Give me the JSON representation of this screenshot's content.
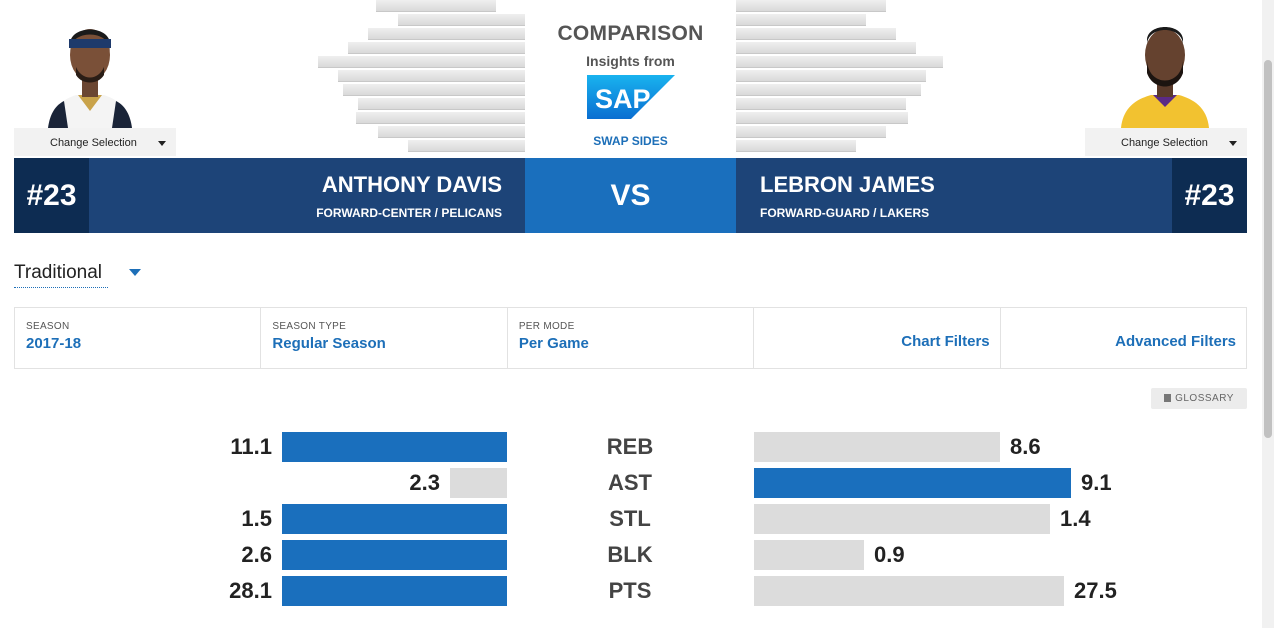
{
  "header": {
    "title": "COMPARISON",
    "insights": "Insights from",
    "sponsor": "SAP",
    "swap_label": "SWAP SIDES",
    "vs_label": "VS"
  },
  "players": {
    "left": {
      "number": "#23",
      "name": "ANTHONY DAVIS",
      "position_team": "FORWARD-CENTER / PELICANS",
      "change_label": "Change Selection"
    },
    "right": {
      "number": "#23",
      "name": "LEBRON JAMES",
      "position_team": "FORWARD-GUARD / LAKERS",
      "change_label": "Change Selection"
    }
  },
  "mode": {
    "selected": "Traditional"
  },
  "filters": {
    "season": {
      "label": "SEASON",
      "value": "2017-18"
    },
    "season_type": {
      "label": "SEASON TYPE",
      "value": "Regular Season"
    },
    "per_mode": {
      "label": "PER MODE",
      "value": "Per Game"
    },
    "chart_filters": "Chart Filters",
    "advanced_filters": "Advanced Filters"
  },
  "glossary_label": "GLOSSARY",
  "stats": [
    {
      "label": "REB",
      "left": "11.1",
      "right": "8.6"
    },
    {
      "label": "AST",
      "left": "2.3",
      "right": "9.1"
    },
    {
      "label": "STL",
      "left": "1.5",
      "right": "1.4"
    },
    {
      "label": "BLK",
      "left": "2.6",
      "right": "0.9"
    },
    {
      "label": "PTS",
      "left": "28.1",
      "right": "27.5"
    }
  ],
  "colors": {
    "leader": "#1a6fbd",
    "trailer": "#dcdcdc",
    "bar_bg": "#1d4478",
    "number_bg": "#0d2c52"
  }
}
